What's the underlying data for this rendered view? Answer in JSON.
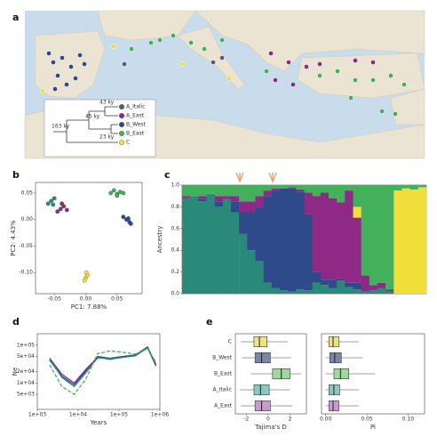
{
  "map": {
    "label": "a",
    "tree": {
      "ages": [
        "163 ky",
        "45 ky",
        "43 ky",
        "23 ky"
      ],
      "groups": [
        {
          "name": "A_Italic",
          "color": "#4b5f86"
        },
        {
          "name": "A_East",
          "color": "#8e2a86"
        },
        {
          "name": "B_West",
          "color": "#2f4a8a"
        },
        {
          "name": "B_East",
          "color": "#43b05c"
        },
        {
          "name": "C",
          "color": "#f0de3a"
        }
      ]
    }
  },
  "chart_data": [
    {
      "type": "scatter",
      "label": "b",
      "xlabel": "PC1: 7.88%",
      "ylabel": "PC2: 4.43%",
      "xlim": [
        -0.08,
        0.09
      ],
      "ylim": [
        -0.14,
        0.07
      ],
      "xticks": [
        -0.05,
        {
          "value": 0,
          "label": "0.00"
        },
        0.05
      ],
      "yticks": [
        0.05,
        {
          "value": 0,
          "label": "0.00"
        },
        -0.05,
        {
          "value": -0.1,
          "label": "-0.10"
        }
      ],
      "series": [
        {
          "color": "#43b05c",
          "x": [
            0.04,
            0.045,
            0.05,
            0.055,
            0.05,
            0.06
          ],
          "y": [
            0.05,
            0.055,
            0.048,
            0.052,
            0.045,
            0.05
          ]
        },
        {
          "color": "#2f4a8a",
          "x": [
            0.06,
            0.065,
            0.07,
            0.068,
            0.072
          ],
          "y": [
            0.005,
            0.0,
            -0.005,
            0.002,
            -0.008
          ]
        },
        {
          "color": "#8e2a86",
          "x": [
            -0.04,
            -0.035,
            -0.045,
            -0.03,
            -0.038
          ],
          "y": [
            0.02,
            0.025,
            0.015,
            0.018,
            0.03
          ]
        },
        {
          "color": "#2a8a7a",
          "x": [
            -0.055,
            -0.05,
            -0.06,
            -0.052
          ],
          "y": [
            0.035,
            0.04,
            0.03,
            0.028
          ]
        },
        {
          "color": "#f0de3a",
          "x": [
            0.0,
            0.003,
            -0.002,
            0.001
          ],
          "y": [
            -0.11,
            -0.105,
            -0.115,
            -0.1
          ]
        }
      ]
    },
    {
      "type": "stacked_bar",
      "label": "c",
      "ylabel": "Ancestry",
      "ylim": [
        0,
        1
      ],
      "yticks": [
        {
          "value": 0,
          "label": "0.0"
        },
        0.2,
        0.4,
        0.6,
        0.8,
        {
          "value": 1,
          "label": "1.0"
        }
      ],
      "categories": [
        null,
        null,
        null,
        null,
        null,
        null,
        null,
        null,
        null,
        null,
        null,
        null,
        null,
        null,
        null,
        null,
        null,
        null,
        null,
        null,
        null,
        null,
        null,
        null,
        null,
        null,
        null,
        null,
        null,
        null
      ],
      "series": [
        {
          "color": "#2a8a7a",
          "values": [
            0.88,
            0.9,
            0.85,
            0.92,
            0.8,
            0.87,
            0.75,
            0.55,
            0.4,
            0.3,
            0.1,
            0.05,
            0.03,
            0.02,
            0.04,
            0.03,
            0.1,
            0.08,
            0.05,
            0.12,
            0.06,
            0.04,
            0.02,
            0.03,
            0.05,
            0.02,
            0,
            0,
            0,
            0
          ]
        },
        {
          "color": "#2f4a8a",
          "values": [
            0,
            0,
            0.02,
            0,
            0.05,
            0,
            0.1,
            0.2,
            0.35,
            0.5,
            0.8,
            0.9,
            0.94,
            0.95,
            0.9,
            0.7,
            0.1,
            0.05,
            0.08,
            0.02,
            0.04,
            0.06,
            0,
            0,
            0,
            0,
            0,
            0,
            0,
            0
          ]
        },
        {
          "color": "#8e2a86",
          "values": [
            0.02,
            0,
            0.03,
            0,
            0.05,
            0.03,
            0.05,
            0.1,
            0.1,
            0.1,
            0.05,
            0.02,
            0,
            0.01,
            0.02,
            0.2,
            0.7,
            0.8,
            0.75,
            0.7,
            0.85,
            0.6,
            0.15,
            0.05,
            0.05,
            0.02,
            0,
            0,
            0,
            0
          ]
        },
        {
          "color": "#f0de3a",
          "values": [
            0,
            0,
            0,
            0,
            0,
            0,
            0,
            0,
            0,
            0,
            0,
            0,
            0,
            0,
            0,
            0,
            0,
            0,
            0,
            0,
            0,
            0.1,
            0,
            0,
            0,
            0,
            0.95,
            0.97,
            0.96,
            0.98
          ]
        },
        {
          "color": "#43b05c",
          "values": [
            0.1,
            0.1,
            0.1,
            0.08,
            0.1,
            0.1,
            0.1,
            0.15,
            0.15,
            0.1,
            0.05,
            0.03,
            0.03,
            0.02,
            0.04,
            0.07,
            0.1,
            0.07,
            0.12,
            0.16,
            0.05,
            0.2,
            0.83,
            0.92,
            0.9,
            0.96,
            0.05,
            0.03,
            0.04,
            0.02
          ]
        }
      ]
    },
    {
      "type": "line",
      "label": "d",
      "xlabel": "Years",
      "ylabel": "Ne",
      "xlog": true,
      "ylog": true,
      "xlim": [
        1000,
        1000000
      ],
      "ylim": [
        2000,
        200000
      ],
      "xticks": [
        {
          "value": 1000,
          "label": "1e+03"
        },
        {
          "value": 10000,
          "label": "1e+04"
        },
        {
          "value": 100000,
          "label": "1e+05"
        },
        {
          "value": 1000000,
          "label": "1e+06"
        }
      ],
      "yticks": [
        {
          "value": 5000,
          "label": "5e+03"
        },
        {
          "value": 10000,
          "label": "1e+04"
        },
        {
          "value": 20000,
          "label": "2e+04"
        },
        {
          "value": 50000,
          "label": "5e+04"
        },
        {
          "value": 100000,
          "label": "1e+05"
        }
      ],
      "x": [
        2000,
        4000,
        8000,
        15000,
        30000,
        60000,
        120000,
        250000,
        500000,
        800000
      ],
      "series": [
        {
          "color": "#2f4a8a",
          "dashed": false,
          "values": [
            40000,
            15000,
            9000,
            20000,
            50000,
            45000,
            50000,
            55000,
            90000,
            30000
          ]
        },
        {
          "color": "#8e2a86",
          "dashed": false,
          "values": [
            45000,
            17000,
            10000,
            22000,
            48000,
            42000,
            48000,
            52000,
            85000,
            28000
          ]
        },
        {
          "color": "#2a8a7a",
          "dashed": false,
          "values": [
            42000,
            14000,
            8000,
            18000,
            46000,
            44000,
            47000,
            53000,
            88000,
            32000
          ]
        },
        {
          "color": "#43b05c",
          "dashed": true,
          "values": [
            30000,
            8000,
            5000,
            12000,
            60000,
            70000,
            65000,
            58000,
            80000,
            35000
          ]
        }
      ]
    },
    {
      "type": "box",
      "label": "e",
      "xlabel": "Tajima's D",
      "xlim": [
        -3,
        3.5
      ],
      "xticks": [
        -2,
        0,
        2
      ],
      "categories": [
        "C",
        "B_West",
        "B_East",
        "A_Italic",
        "A_East"
      ],
      "colors": [
        "#eee486",
        "#7a86a8",
        "#9ed89a",
        "#8cc8c0",
        "#c89ad0"
      ],
      "boxes": [
        {
          "min": -2.5,
          "q1": -1.3,
          "median": -0.8,
          "q3": -0.1,
          "max": 1.8
        },
        {
          "min": -2.4,
          "q1": -1.2,
          "median": -0.6,
          "q3": 0.2,
          "max": 2.1
        },
        {
          "min": -1.6,
          "q1": 0.4,
          "median": 1.2,
          "q3": 2.0,
          "max": 3.0
        },
        {
          "min": -2.6,
          "q1": -1.3,
          "median": -0.7,
          "q3": 0.1,
          "max": 2.0
        },
        {
          "min": -2.5,
          "q1": -1.2,
          "median": -0.6,
          "q3": 0.2,
          "max": 2.2
        }
      ]
    },
    {
      "type": "box",
      "xlabel": "Pi",
      "xlim": [
        -0.005,
        0.12
      ],
      "xticks": [
        {
          "value": 0,
          "label": "0.00"
        },
        0.05,
        {
          "value": 0.1,
          "label": "0.10"
        }
      ],
      "colors": [
        "#eee486",
        "#7a86a8",
        "#9ed89a",
        "#8cc8c0",
        "#c89ad0"
      ],
      "boxes": [
        {
          "min": 0,
          "q1": 0.004,
          "median": 0.009,
          "q3": 0.016,
          "max": 0.04
        },
        {
          "min": 0,
          "q1": 0.005,
          "median": 0.011,
          "q3": 0.019,
          "max": 0.045
        },
        {
          "min": 0,
          "q1": 0.01,
          "median": 0.018,
          "q3": 0.028,
          "max": 0.06
        },
        {
          "min": 0,
          "q1": 0.004,
          "median": 0.01,
          "q3": 0.017,
          "max": 0.04
        },
        {
          "min": 0,
          "q1": 0.004,
          "median": 0.009,
          "q3": 0.016,
          "max": 0.04
        }
      ]
    }
  ]
}
